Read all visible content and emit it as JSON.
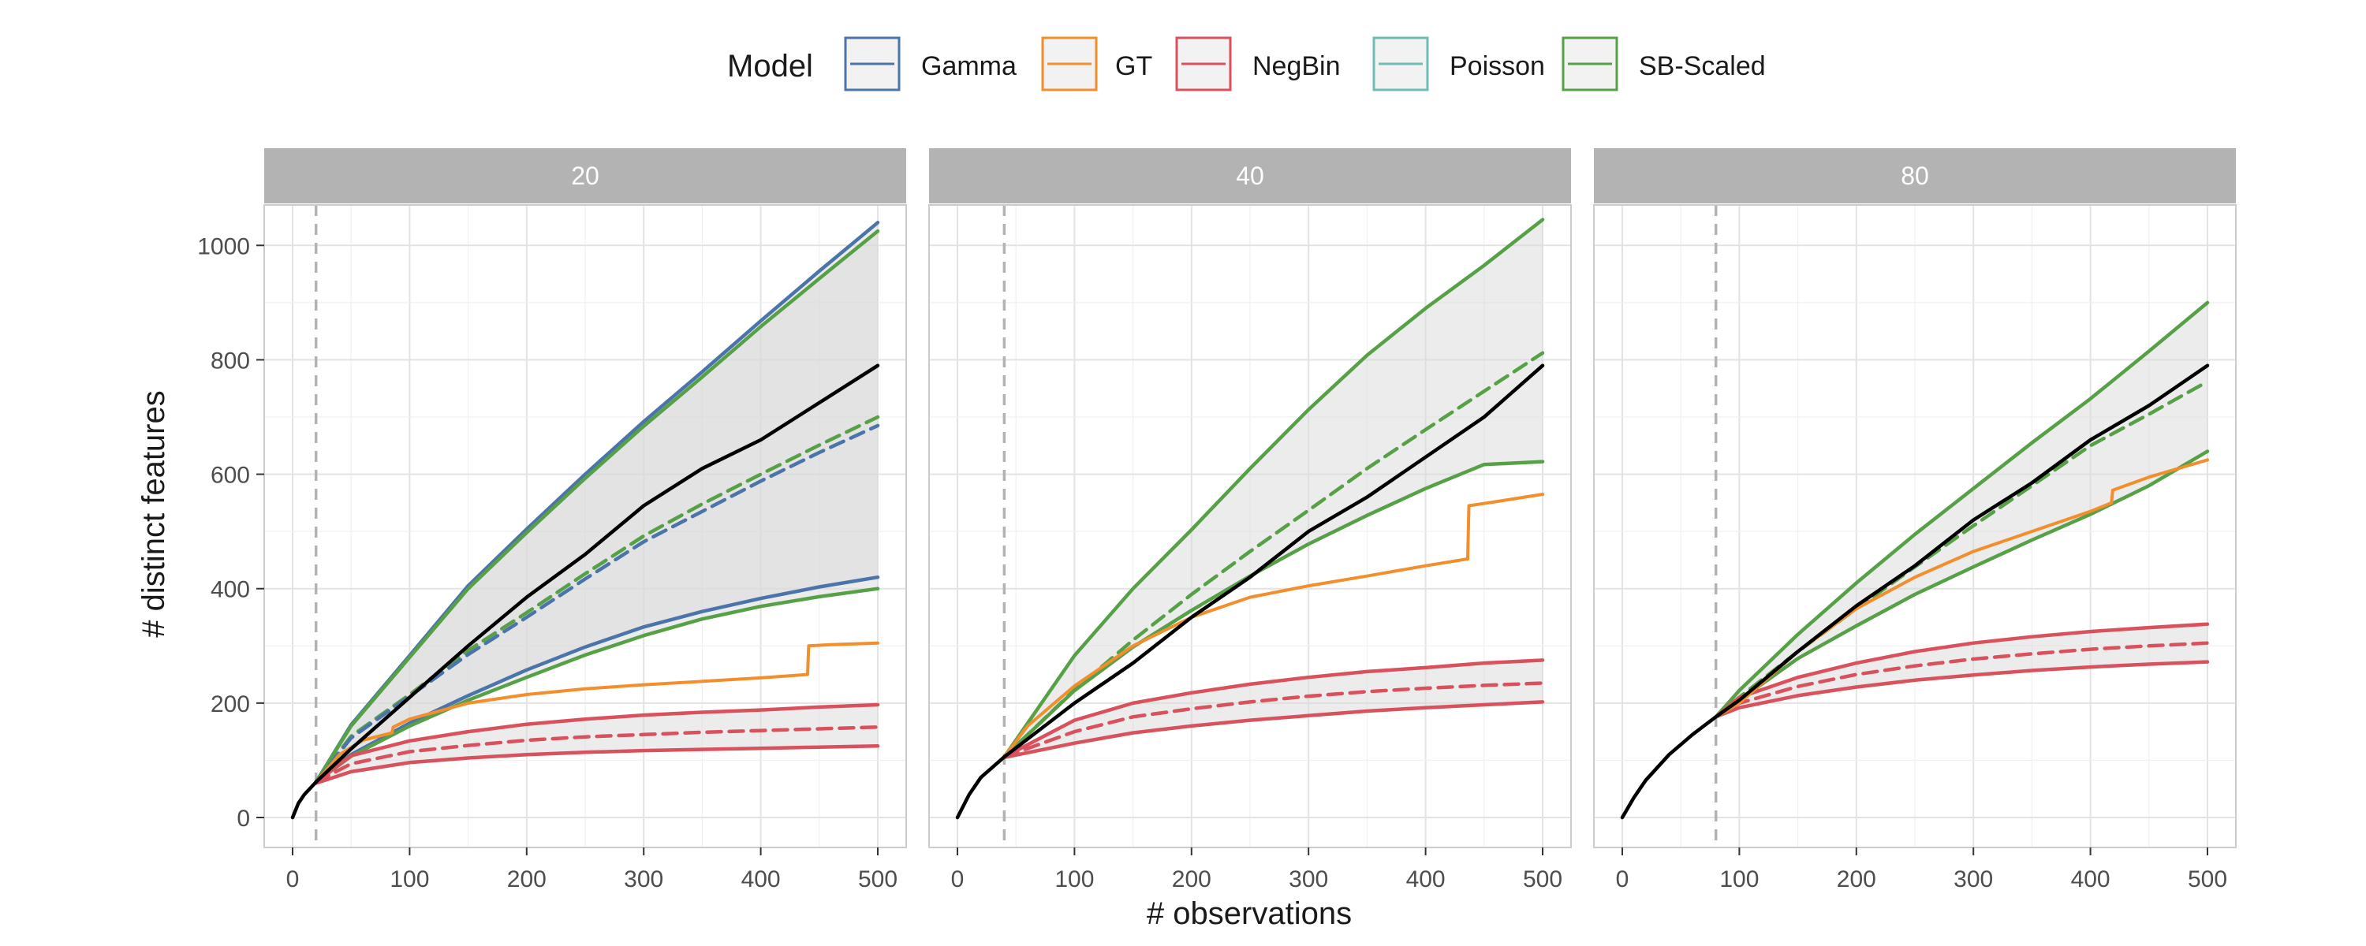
{
  "chart_data": {
    "type": "line",
    "xlabel": "# observations",
    "ylabel": "# distinct features",
    "xlim": [
      0,
      500
    ],
    "ylim": [
      0,
      1050
    ],
    "x_ticks": [
      0,
      100,
      200,
      300,
      400,
      500
    ],
    "y_ticks": [
      0,
      200,
      400,
      600,
      800,
      1000
    ],
    "grid": true,
    "legend": {
      "title": "Model",
      "position": "top",
      "entries": [
        {
          "name": "Gamma",
          "color": "#4a74aa"
        },
        {
          "name": "GT",
          "color": "#f28e2b"
        },
        {
          "name": "NegBin",
          "color": "#d9515c"
        },
        {
          "name": "Poisson",
          "color": "#6fbdb2"
        },
        {
          "name": "SB-Scaled",
          "color": "#56a046"
        }
      ]
    },
    "reference_line_color": "#b3b3b3",
    "observed_color": "#000000",
    "band_fill": "#d9d9d9",
    "x_grid": [
      0,
      50,
      100,
      150,
      200,
      250,
      300,
      350,
      400,
      450,
      500
    ],
    "panels": [
      {
        "label": "20",
        "vline": 20,
        "observed": {
          "x": [
            0,
            5,
            10,
            20,
            50,
            100,
            150,
            200,
            250,
            300,
            350,
            400,
            450,
            500
          ],
          "y": [
            0,
            25,
            40,
            62,
            120,
            210,
            300,
            385,
            460,
            545,
            610,
            660,
            725,
            790
          ]
        },
        "bands": [
          {
            "model": "Gamma",
            "x": [
              20,
              50,
              100,
              150,
              200,
              250,
              300,
              350,
              400,
              450,
              500
            ],
            "lower": [
              62,
              110,
              165,
              213,
              258,
              298,
              333,
              360,
              383,
              403,
              420
            ],
            "upper": [
              62,
              162,
              283,
              405,
              504,
              600,
              692,
              779,
              868,
              955,
              1040
            ]
          },
          {
            "model": "SB-Scaled",
            "x": [
              20,
              50,
              100,
              150,
              200,
              250,
              300,
              350,
              400,
              450,
              500
            ],
            "lower": [
              62,
              107,
              160,
              205,
              245,
              284,
              318,
              347,
              369,
              386,
              400
            ],
            "upper": [
              62,
              160,
              280,
              400,
              498,
              593,
              684,
              770,
              858,
              942,
              1025
            ],
            "mid": [
              62,
              142,
              215,
              292,
              358,
              426,
              492,
              548,
              600,
              651,
              700
            ]
          },
          {
            "model": "NegBin",
            "x": [
              20,
              50,
              100,
              150,
              200,
              250,
              300,
              350,
              400,
              450,
              500
            ],
            "lower": [
              60,
              80,
              96,
              104,
              110,
              114,
              117,
              119,
              121,
              123,
              125
            ],
            "upper": [
              62,
              108,
              134,
              150,
              163,
              172,
              179,
              184,
              188,
              193,
              197
            ],
            "mid": [
              62,
              94,
              115,
              126,
              135,
              141,
              145,
              149,
              152,
              155,
              158
            ]
          }
        ],
        "dashed": [
          {
            "model": "Gamma",
            "x": [
              20,
              50,
              100,
              150,
              200,
              250,
              300,
              350,
              400,
              450,
              500
            ],
            "y": [
              62,
              139,
              212,
              285,
              350,
              417,
              482,
              535,
              588,
              638,
              685
            ]
          }
        ],
        "gt": {
          "x": [
            20,
            40,
            60,
            85,
            86,
            100,
            150,
            200,
            250,
            300,
            350,
            400,
            440,
            441,
            460,
            500
          ],
          "y": [
            62,
            110,
            135,
            148,
            158,
            172,
            200,
            215,
            225,
            232,
            238,
            244,
            250,
            300,
            302,
            305
          ]
        }
      },
      {
        "label": "40",
        "vline": 40,
        "observed": {
          "x": [
            0,
            10,
            20,
            40,
            100,
            150,
            200,
            250,
            300,
            350,
            400,
            450,
            500
          ],
          "y": [
            0,
            40,
            70,
            106,
            200,
            270,
            350,
            420,
            500,
            560,
            630,
            700,
            790
          ]
        },
        "bands": [
          {
            "model": "SB-Scaled",
            "x": [
              40,
              100,
              150,
              200,
              250,
              300,
              350,
              400,
              450,
              500
            ],
            "lower": [
              106,
              222,
              298,
              362,
              422,
              478,
              528,
              575,
              617,
              622
            ],
            "upper": [
              106,
              283,
              400,
              503,
              610,
              713,
              808,
              890,
              965,
              1045
            ],
            "mid": [
              106,
              223,
              310,
              390,
              465,
              537,
              610,
              678,
              745,
              812
            ]
          },
          {
            "model": "NegBin",
            "x": [
              40,
              100,
              150,
              200,
              250,
              300,
              350,
              400,
              450,
              500
            ],
            "lower": [
              105,
              130,
              148,
              160,
              170,
              178,
              186,
              192,
              197,
              202
            ],
            "upper": [
              106,
              170,
              200,
              218,
              233,
              245,
              255,
              262,
              270,
              275
            ],
            "mid": [
              106,
              150,
              176,
              190,
              202,
              212,
              220,
              226,
              231,
              235
            ]
          }
        ],
        "dashed": [],
        "gt": {
          "x": [
            40,
            60,
            100,
            150,
            200,
            250,
            300,
            350,
            400,
            436,
            437,
            460,
            500
          ],
          "y": [
            106,
            160,
            230,
            300,
            350,
            385,
            405,
            422,
            440,
            452,
            545,
            552,
            565
          ]
        }
      },
      {
        "label": "80",
        "vline": 80,
        "observed": {
          "x": [
            0,
            10,
            20,
            40,
            60,
            80,
            100,
            150,
            200,
            250,
            300,
            350,
            400,
            450,
            500
          ],
          "y": [
            0,
            35,
            65,
            110,
            145,
            176,
            205,
            290,
            370,
            440,
            520,
            585,
            660,
            720,
            790
          ]
        },
        "bands": [
          {
            "model": "SB-Scaled",
            "x": [
              80,
              100,
              150,
              200,
              250,
              300,
              350,
              400,
              450,
              500
            ],
            "lower": [
              176,
              205,
              278,
              335,
              390,
              438,
              485,
              530,
              580,
              640
            ],
            "upper": [
              176,
              222,
              320,
              410,
              495,
              575,
              655,
              732,
              815,
              900
            ],
            "mid": [
              176,
              210,
              290,
              365,
              438,
              510,
              580,
              650,
              705,
              762
            ]
          },
          {
            "model": "NegBin",
            "x": [
              80,
              100,
              150,
              200,
              250,
              300,
              350,
              400,
              450,
              500
            ],
            "lower": [
              176,
              192,
              213,
              228,
              240,
              249,
              257,
              263,
              268,
              272
            ],
            "upper": [
              176,
              210,
              245,
              270,
              290,
              305,
              316,
              325,
              332,
              338
            ],
            "mid": [
              176,
              200,
              229,
              250,
              265,
              277,
              286,
              294,
              300,
              305
            ]
          }
        ],
        "dashed": [],
        "gt": {
          "x": [
            80,
            100,
            150,
            200,
            250,
            300,
            350,
            400,
            418,
            419,
            450,
            500
          ],
          "y": [
            176,
            200,
            290,
            365,
            420,
            465,
            500,
            535,
            550,
            572,
            595,
            625
          ]
        }
      }
    ]
  }
}
